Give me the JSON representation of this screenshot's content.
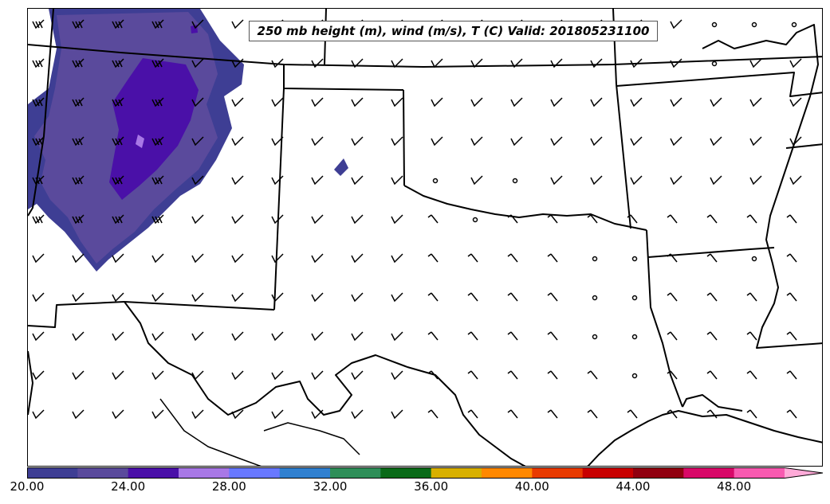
{
  "title": "250 mb height (m), wind (m/s), T (C) Valid: 201805231100",
  "colorbar": {
    "ticks": [
      "20.00",
      "24.00",
      "28.00",
      "32.00",
      "36.00",
      "40.00",
      "44.00",
      "48.00"
    ],
    "colors": [
      "#3e3e94",
      "#5a4a9c",
      "#4a10a8",
      "#a878e6",
      "#6878ff",
      "#3080d0",
      "#2e8e58",
      "#0a6a18",
      "#d8b000",
      "#ff8800",
      "#e83a00",
      "#c80000",
      "#900010",
      "#d80868",
      "#f85ab0",
      "#ffaad8"
    ]
  },
  "map": {
    "land_color": "#ffffff",
    "boundary_color": "#000000",
    "fill_colors": {
      "outer": "#3e3e94",
      "mid": "#5a4a9c",
      "inner": "#4a10a8",
      "spot": "#a878e6"
    },
    "map_feature_icons": [
      "state-boundary",
      "coastline",
      "river",
      "wind-barb",
      "calm-circle"
    ]
  }
}
